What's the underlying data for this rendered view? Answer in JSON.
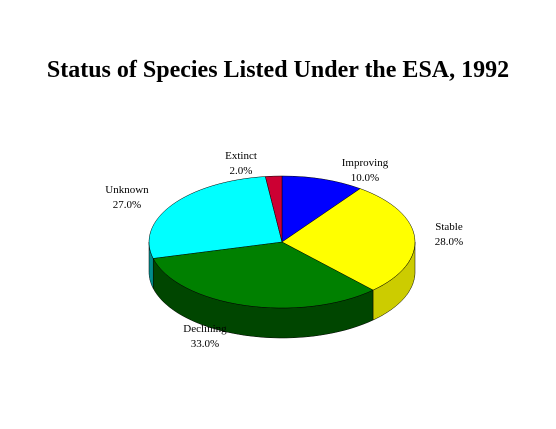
{
  "chart_data": {
    "type": "pie",
    "title": "Status of Species Listed Under the ESA, 1992",
    "categories": [
      "Improving",
      "Stable",
      "Declining",
      "Unknown",
      "Extinct"
    ],
    "values": [
      10,
      28,
      33,
      27,
      2
    ],
    "value_labels": [
      "10.0%",
      "28.0%",
      "33.0%",
      "27.0%",
      "2.0%"
    ],
    "colors": [
      "#0000ff",
      "#ffff00",
      "#008000",
      "#00ffff",
      "#cc0033"
    ]
  }
}
